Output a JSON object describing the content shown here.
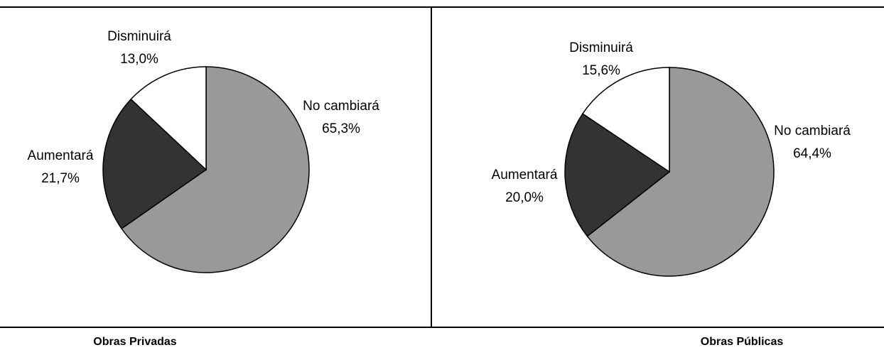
{
  "chart_data": [
    {
      "type": "pie",
      "title": "Obras Privadas",
      "categories": [
        "No cambiará",
        "Aumentará",
        "Disminuirá"
      ],
      "values": [
        65.3,
        21.7,
        13.0
      ],
      "value_labels": [
        "65,3%",
        "21,7%",
        "13,0%"
      ],
      "colors": [
        "#999999",
        "#333333",
        "#ffffff"
      ]
    },
    {
      "type": "pie",
      "title": "Obras Públicas",
      "categories": [
        "No cambiará",
        "Aumentará",
        "Disminuirá"
      ],
      "values": [
        64.4,
        20.0,
        15.6
      ],
      "value_labels": [
        "64,4%",
        "20,0%",
        "15,6%"
      ],
      "colors": [
        "#999999",
        "#333333",
        "#ffffff"
      ]
    }
  ]
}
